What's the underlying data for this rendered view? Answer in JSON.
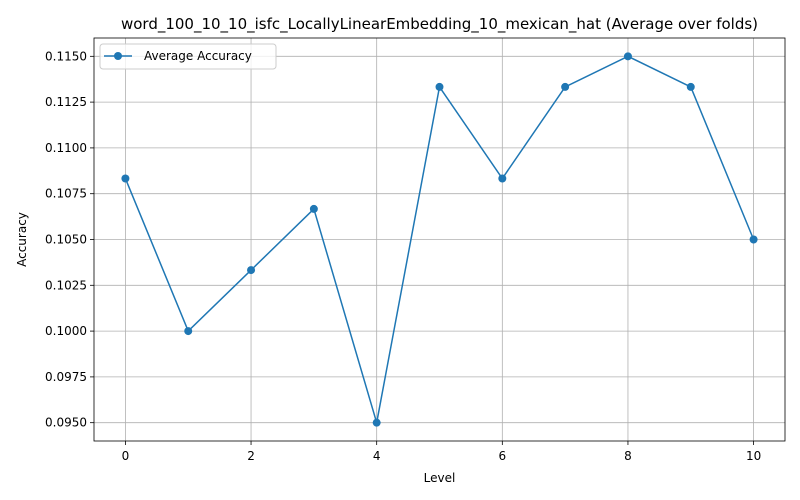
{
  "chart_data": {
    "type": "line",
    "title": "word_100_10_10_isfc_LocallyLinearEmbedding_10_mexican_hat (Average over folds)",
    "xlabel": "Level",
    "ylabel": "Accuracy",
    "x": [
      0,
      1,
      2,
      3,
      4,
      5,
      6,
      7,
      8,
      9,
      10
    ],
    "series": [
      {
        "name": "Average Accuracy",
        "values": [
          0.10833,
          0.1,
          0.10333,
          0.10667,
          0.095,
          0.11333,
          0.10833,
          0.11333,
          0.115,
          0.11333,
          0.105
        ],
        "color": "#1f77b4",
        "marker": "circle"
      }
    ],
    "xlim": [
      -0.5,
      10.5
    ],
    "ylim": [
      0.094,
      0.116
    ],
    "xticks": [
      0,
      2,
      4,
      6,
      8,
      10
    ],
    "yticks": [
      0.095,
      0.0975,
      0.1,
      0.1025,
      0.105,
      0.1075,
      0.11,
      0.1125,
      0.115
    ],
    "ytick_labels": [
      "0.0950",
      "0.0975",
      "0.1000",
      "0.1025",
      "0.1050",
      "0.1075",
      "0.1100",
      "0.1125",
      "0.1150"
    ],
    "grid": true,
    "legend": "top-left"
  }
}
